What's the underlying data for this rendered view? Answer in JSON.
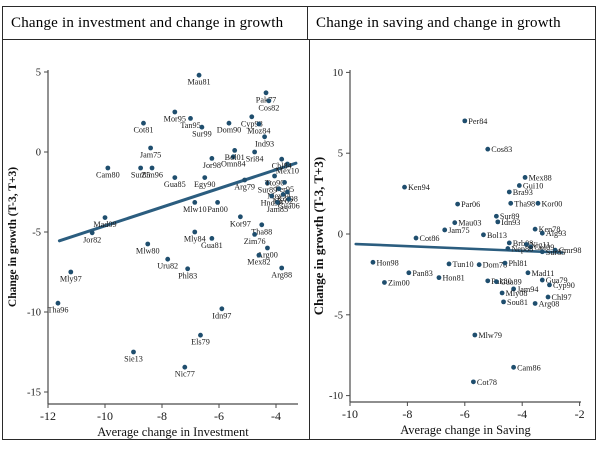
{
  "panels": [
    {
      "title": "Change in investment and change in growth"
    },
    {
      "title": "Change in saving and change in growth"
    }
  ],
  "chart_data": [
    {
      "type": "scatter",
      "title": "Change in investment and change in growth",
      "xlabel": "Average change in Investment",
      "ylabel": "Change in growth (T-3, T+3)",
      "xlim": [
        -12.4,
        -3.2
      ],
      "ylim": [
        -15.7,
        5.6
      ],
      "x_ticks": [
        -12,
        -10,
        -8,
        -6,
        -4
      ],
      "y_ticks": [
        5,
        0,
        -5,
        -10,
        -15
      ],
      "grid": false,
      "legend": "none",
      "point_color": "#1f4e6e",
      "line_color": "#2b5d7f",
      "label_position": "below",
      "trendline": {
        "x1": -11.6,
        "y1": -5.55,
        "x2": -3.3,
        "y2": -0.7
      },
      "points": [
        {
          "label": "Mau81",
          "x": -6.7,
          "y": 4.8
        },
        {
          "label": "Pak77",
          "x": -4.35,
          "y": 3.7
        },
        {
          "label": "Cos82",
          "x": -4.25,
          "y": 3.2
        },
        {
          "label": "Mor95",
          "x": -7.55,
          "y": 2.5
        },
        {
          "label": "Tan95",
          "x": -7.0,
          "y": 2.1
        },
        {
          "label": "Sur99",
          "x": -6.6,
          "y": 1.55
        },
        {
          "label": "Dom90",
          "x": -5.65,
          "y": 1.8
        },
        {
          "label": "Cyp98",
          "x": -4.85,
          "y": 2.2
        },
        {
          "label": "Moz84",
          "x": -4.6,
          "y": 1.75
        },
        {
          "label": "Ind93",
          "x": -4.4,
          "y": 0.95
        },
        {
          "label": "Cot81",
          "x": -8.65,
          "y": 1.8
        },
        {
          "label": "Jam75",
          "x": -8.4,
          "y": 0.25
        },
        {
          "label": "Cam80",
          "x": -9.9,
          "y": -1.0
        },
        {
          "label": "Sur85",
          "x": -8.75,
          "y": -1.0
        },
        {
          "label": "Zim96",
          "x": -8.35,
          "y": -1.0
        },
        {
          "label": "Gua85",
          "x": -7.55,
          "y": -1.6
        },
        {
          "label": "Egy90",
          "x": -6.5,
          "y": -1.6
        },
        {
          "label": "Jor98",
          "x": -6.25,
          "y": -0.4
        },
        {
          "label": "Omn84",
          "x": -5.5,
          "y": -0.3
        },
        {
          "label": "Bol01",
          "x": -5.45,
          "y": 0.1
        },
        {
          "label": "Sri84",
          "x": -4.75,
          "y": 0.0
        },
        {
          "label": "Arg79",
          "x": -5.1,
          "y": -1.75
        },
        {
          "label": "Sur89",
          "x": -4.3,
          "y": -1.95
        },
        {
          "label": "Mex10",
          "x": -3.6,
          "y": -0.75
        },
        {
          "label": "Chl84",
          "x": -3.8,
          "y": -0.45
        },
        {
          "label": "Tto90",
          "x": -4.05,
          "y": -1.5
        },
        {
          "label": "Per95",
          "x": -3.7,
          "y": -1.9
        },
        {
          "label": "Mex94",
          "x": -3.9,
          "y": -2.3
        },
        {
          "label": "Kor98",
          "x": -3.6,
          "y": -2.5
        },
        {
          "label": "Nic02",
          "x": -3.75,
          "y": -2.65
        },
        {
          "label": "Hnd98",
          "x": -4.15,
          "y": -2.75
        },
        {
          "label": "Gua06",
          "x": -3.55,
          "y": -2.95
        },
        {
          "label": "Jam85",
          "x": -3.95,
          "y": -3.15
        },
        {
          "label": "Mlw10",
          "x": -6.85,
          "y": -3.15
        },
        {
          "label": "Pan00",
          "x": -6.05,
          "y": -3.15
        },
        {
          "label": "Kor97",
          "x": -5.25,
          "y": -4.05
        },
        {
          "label": "Mly84",
          "x": -6.85,
          "y": -5.0
        },
        {
          "label": "Gua81",
          "x": -6.25,
          "y": -5.4
        },
        {
          "label": "Tha88",
          "x": -4.5,
          "y": -4.55
        },
        {
          "label": "Zim76",
          "x": -4.75,
          "y": -5.15
        },
        {
          "label": "Arg00",
          "x": -4.3,
          "y": -6.0
        },
        {
          "label": "Mex82",
          "x": -4.6,
          "y": -6.45
        },
        {
          "label": "Arg88",
          "x": -3.8,
          "y": -7.25
        },
        {
          "label": "Mad09",
          "x": -10.0,
          "y": -4.1
        },
        {
          "label": "Jor82",
          "x": -10.45,
          "y": -5.05
        },
        {
          "label": "Mlw80",
          "x": -8.5,
          "y": -5.75
        },
        {
          "label": "Uru82",
          "x": -7.8,
          "y": -6.7
        },
        {
          "label": "Phl83",
          "x": -7.1,
          "y": -7.3
        },
        {
          "label": "Mly97",
          "x": -11.2,
          "y": -7.5
        },
        {
          "label": "Tha96",
          "x": -11.65,
          "y": -9.45
        },
        {
          "label": "Idn97",
          "x": -5.9,
          "y": -9.8
        },
        {
          "label": "Els79",
          "x": -6.65,
          "y": -11.45
        },
        {
          "label": "Sie13",
          "x": -9.0,
          "y": -12.5
        },
        {
          "label": "Nic77",
          "x": -7.2,
          "y": -13.45
        }
      ]
    },
    {
      "type": "scatter",
      "title": "Change in saving and change in growth",
      "xlabel": "Average change in Saving",
      "ylabel": "Change in growth (T-3, T+3)",
      "xlim": [
        -10.4,
        -1.9
      ],
      "ylim": [
        -10.6,
        10.4
      ],
      "x_ticks": [
        -10,
        -8,
        -6,
        -4,
        -2
      ],
      "y_ticks": [
        10,
        5,
        0,
        -5,
        -10
      ],
      "grid": false,
      "legend": "none",
      "point_color": "#1f4e6e",
      "line_color": "#2b5d7f",
      "label_position": "right",
      "trendline": {
        "x1": -9.8,
        "y1": -0.62,
        "x2": -2.6,
        "y2": -1.15
      },
      "points": [
        {
          "label": "Per84",
          "x": -6.0,
          "y": 7.0
        },
        {
          "label": "Cos83",
          "x": -5.2,
          "y": 5.25
        },
        {
          "label": "Mex88",
          "x": -3.9,
          "y": 3.5
        },
        {
          "label": "Gui10",
          "x": -4.1,
          "y": 3.0
        },
        {
          "label": "Bra93",
          "x": -4.45,
          "y": 2.6
        },
        {
          "label": "Ken94",
          "x": -8.1,
          "y": 2.9
        },
        {
          "label": "Par06",
          "x": -6.25,
          "y": 1.85
        },
        {
          "label": "Tha98",
          "x": -4.4,
          "y": 1.9
        },
        {
          "label": "Kor00",
          "x": -3.45,
          "y": 1.9
        },
        {
          "label": "Sur89",
          "x": -4.9,
          "y": 1.1
        },
        {
          "label": "Idn93",
          "x": -4.85,
          "y": 0.75
        },
        {
          "label": "Mau03",
          "x": -6.35,
          "y": 0.7
        },
        {
          "label": "Jam75",
          "x": -6.7,
          "y": 0.25
        },
        {
          "label": "Bol13",
          "x": -5.35,
          "y": -0.05
        },
        {
          "label": "Cot86",
          "x": -7.7,
          "y": -0.25
        },
        {
          "label": "Ken78",
          "x": -3.55,
          "y": 0.3
        },
        {
          "label": "Alg93",
          "x": -3.3,
          "y": 0.05
        },
        {
          "label": "Brb08",
          "x": -4.45,
          "y": -0.55
        },
        {
          "label": "Nig11",
          "x": -3.85,
          "y": -0.65
        },
        {
          "label": "Col09",
          "x": -3.7,
          "y": -0.8
        },
        {
          "label": "Nep88",
          "x": -4.5,
          "y": -0.9
        },
        {
          "label": "Cmr98",
          "x": -2.85,
          "y": -1.0
        },
        {
          "label": "Sur85",
          "x": -3.3,
          "y": -1.1
        },
        {
          "label": "Hon98",
          "x": -9.2,
          "y": -1.75
        },
        {
          "label": "Tun10",
          "x": -6.55,
          "y": -1.85
        },
        {
          "label": "Dom78",
          "x": -5.5,
          "y": -1.9
        },
        {
          "label": "Phl81",
          "x": -4.6,
          "y": -1.8
        },
        {
          "label": "Pan83",
          "x": -7.95,
          "y": -2.4
        },
        {
          "label": "Hon81",
          "x": -6.9,
          "y": -2.7
        },
        {
          "label": "Pak80",
          "x": -5.2,
          "y": -2.9
        },
        {
          "label": "Gua89",
          "x": -4.9,
          "y": -2.95
        },
        {
          "label": "Mad11",
          "x": -3.8,
          "y": -2.4
        },
        {
          "label": "Gua79",
          "x": -3.3,
          "y": -2.85
        },
        {
          "label": "Cyp90",
          "x": -3.05,
          "y": -3.15
        },
        {
          "label": "Jam94",
          "x": -4.3,
          "y": -3.4
        },
        {
          "label": "Mly08",
          "x": -4.7,
          "y": -3.65
        },
        {
          "label": "Chl97",
          "x": -3.1,
          "y": -3.9
        },
        {
          "label": "Sou81",
          "x": -4.65,
          "y": -4.2
        },
        {
          "label": "Arg08",
          "x": -3.55,
          "y": -4.3
        },
        {
          "label": "Zim00",
          "x": -8.8,
          "y": -3.0
        },
        {
          "label": "Mlw79",
          "x": -5.65,
          "y": -6.25
        },
        {
          "label": "Cam86",
          "x": -4.3,
          "y": -8.25
        },
        {
          "label": "Cot78",
          "x": -5.7,
          "y": -9.15
        }
      ]
    }
  ]
}
